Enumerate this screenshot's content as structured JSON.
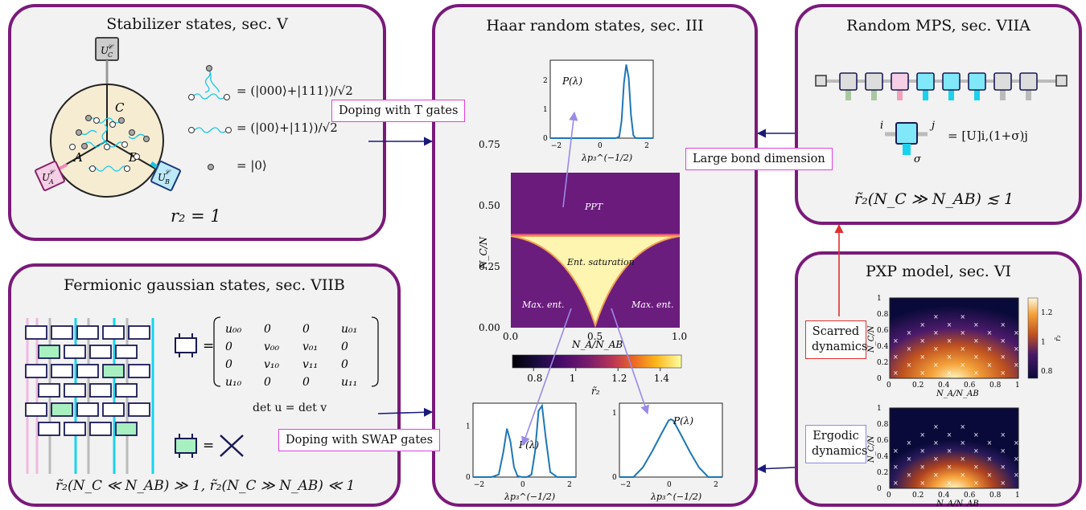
{
  "panels": {
    "stabilizer": {
      "title": "Stabilizer states, sec. V",
      "eq_ghz": "= (|000⟩+|111⟩)/√2",
      "eq_bell": "= (|00⟩+|11⟩)/√2",
      "eq_zero": "= |0⟩",
      "region_labels": [
        "C",
        "A",
        "B"
      ],
      "unitaries": [
        "U_C^𝒞",
        "U_A^𝒞",
        "U_B^𝒞"
      ],
      "result": "r₂ = 1"
    },
    "haar": {
      "title": "Haar random states, sec. III"
    },
    "mps": {
      "title": "Random MPS, sec. VIIA",
      "index_i": "i",
      "index_j": "j",
      "index_sigma": "σ",
      "equation": "= [U]i,(1+σ)j",
      "result": "r̃₂(N_C ≫ N_AB) ≲ 1"
    },
    "fermionic": {
      "title": "Fermionic gaussian states, sec. VIIB",
      "matrix": [
        [
          "u₀₀",
          "0",
          "0",
          "u₀₁"
        ],
        [
          "0",
          "v₀₀",
          "v₀₁",
          "0"
        ],
        [
          "0",
          "v₁₀",
          "v₁₁",
          "0"
        ],
        [
          "u₁₀",
          "0",
          "0",
          "u₁₁"
        ]
      ],
      "det": "det u = det v",
      "result": "r̃₂(N_C ≪ N_AB) ≫ 1,  r̃₂(N_C ≫ N_AB) ≪ 1"
    },
    "pxp": {
      "title": "PXP model, sec. VI",
      "scarred": "Scarred\ndynamics",
      "ergodic": "Ergodic\ndynamics"
    }
  },
  "arrows": {
    "t_gates": "Doping with T gates",
    "swap_gates": "Doping with SWAP gates",
    "bond": "Large bond dimension"
  },
  "colors": {
    "panel_border": "#7a1a7a",
    "curve": "#1f77b4",
    "tag_border": "#e040e0",
    "scar_border": "#e03030",
    "mps_cyan": "#80e8f8",
    "fermion_green": "#a8f0c0"
  },
  "chart_data": [
    {
      "type": "heatmap",
      "name": "phase-diagram",
      "xlabel": "N_A/N_AB",
      "ylabel": "N_C/N",
      "xlim": [
        0.0,
        1.0
      ],
      "ylim": [
        0.0,
        0.8
      ],
      "xticks": [
        "0.0",
        "0.5",
        "1.0"
      ],
      "yticks": [
        "0.00",
        "0.25",
        "0.50",
        "0.75"
      ],
      "regions": [
        "PPT",
        "Ent. saturation",
        "Max. ent.",
        "Max. ent."
      ],
      "colorbar": {
        "label": "r̃₂",
        "range": [
          0.7,
          1.5
        ],
        "ticks": [
          "0.8",
          "1",
          "1.2",
          "1.4"
        ]
      }
    },
    {
      "type": "line",
      "name": "P-lambda-top",
      "title": "P(λ)",
      "xlabel": "λp₃^(−1/2)",
      "xticks": [
        "−2",
        "0",
        "2"
      ],
      "yticks": [
        "0",
        "1",
        "2"
      ],
      "xlim": [
        -2.2,
        2.2
      ],
      "ylim": [
        0,
        2.7
      ],
      "x": [
        -2.2,
        0.6,
        0.75,
        0.85,
        0.95,
        1.05,
        1.15,
        1.25,
        1.35,
        1.45,
        2.2
      ],
      "y": [
        0,
        0,
        0.05,
        0.6,
        1.9,
        2.55,
        2.1,
        0.8,
        0.1,
        0,
        0
      ]
    },
    {
      "type": "line",
      "name": "P-lambda-bottom-left",
      "title": "P(λ)",
      "xlabel": "λp₃^(−1/2)",
      "xticks": [
        "−2",
        "0",
        "2"
      ],
      "yticks": [
        "0",
        "1"
      ],
      "xlim": [
        -2.2,
        2.2
      ],
      "ylim": [
        0,
        1.45
      ],
      "x": [
        -2.2,
        -1.4,
        -1.1,
        -0.9,
        -0.75,
        -0.6,
        -0.45,
        -0.3,
        -0.1,
        0.1,
        0.3,
        0.45,
        0.6,
        0.75,
        0.9,
        1.1,
        1.4,
        2.2
      ],
      "y": [
        0,
        0,
        0.05,
        0.5,
        0.95,
        0.7,
        0.2,
        0.02,
        0,
        0,
        0.05,
        0.5,
        1.3,
        1.4,
        0.8,
        0.1,
        0,
        0
      ]
    },
    {
      "type": "line",
      "name": "P-lambda-bottom-right",
      "title": "P(λ)",
      "xlabel": "λp₃^(−1/2)",
      "xticks": [
        "−2",
        "0",
        "2"
      ],
      "yticks": [
        "0",
        "1"
      ],
      "xlim": [
        -2.2,
        2.2
      ],
      "ylim": [
        0,
        1.15
      ],
      "x": [
        -2.2,
        -1.6,
        -1.2,
        -0.8,
        -0.4,
        -0.1,
        0,
        0.1,
        0.4,
        0.8,
        1.2,
        1.6,
        2.2
      ],
      "y": [
        0,
        0,
        0.15,
        0.4,
        0.68,
        0.88,
        0.9,
        0.88,
        0.68,
        0.4,
        0.15,
        0,
        0
      ]
    },
    {
      "type": "heatmap",
      "name": "pxp-scarred",
      "xlabel": "N_A/N_AB",
      "ylabel": "N_C/N",
      "xticks": [
        "0",
        "0.2",
        "0.4",
        "0.6",
        "0.8",
        "1"
      ],
      "yticks": [
        "0",
        "0.2",
        "0.4",
        "0.6",
        "0.8",
        "1"
      ],
      "colorbar": {
        "label": "r̃₂",
        "range": [
          0.75,
          1.3
        ],
        "ticks": [
          "0.8",
          "1",
          "1.2"
        ]
      }
    },
    {
      "type": "heatmap",
      "name": "pxp-ergodic",
      "xlabel": "N_A/N_AB",
      "ylabel": "N_C/N",
      "xticks": [
        "0",
        "0.2",
        "0.4",
        "0.6",
        "0.8",
        "1"
      ],
      "yticks": [
        "0",
        "0.2",
        "0.4",
        "0.6",
        "0.8",
        "1"
      ]
    }
  ]
}
